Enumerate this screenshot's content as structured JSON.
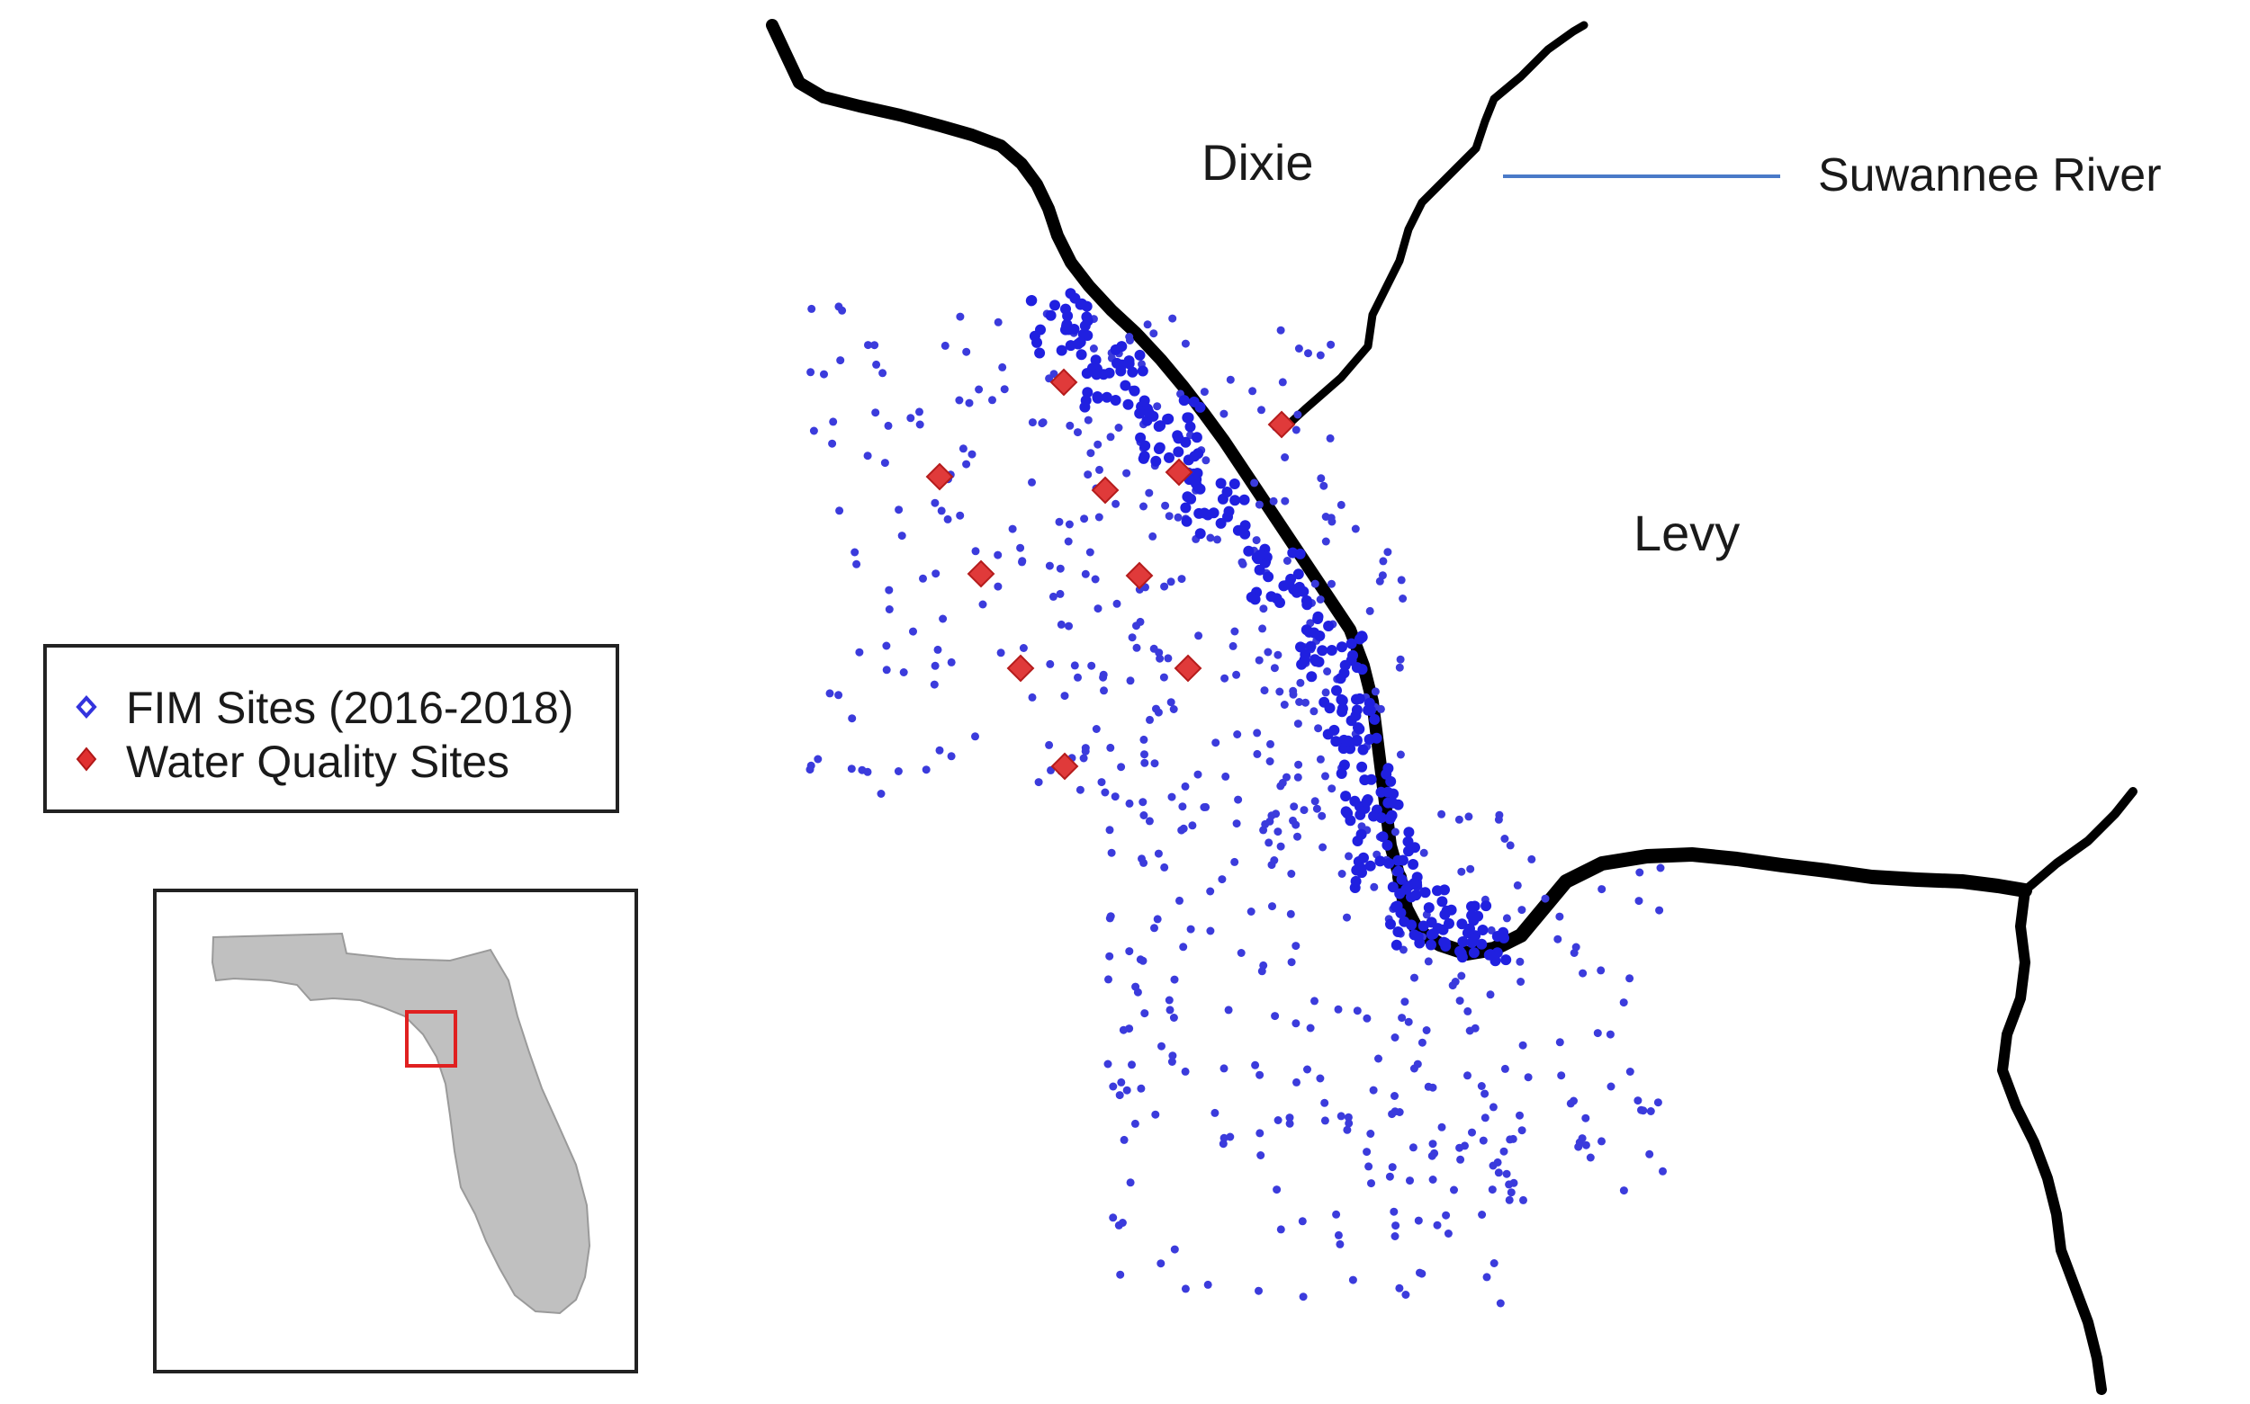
{
  "map": {
    "labels": {
      "dixie": "Dixie",
      "levy": "Levy",
      "suwannee_river": "Suwannee River"
    },
    "legend": {
      "items": [
        {
          "label": "FIM Sites (2016-2018)",
          "symbol": "open-diamond-icon",
          "color": "#3333dd"
        },
        {
          "label": "Water Quality Sites",
          "symbol": "filled-diamond-icon",
          "color": "#e03030"
        }
      ]
    },
    "inset": {
      "region": "Florida",
      "highlight_color": "#e02020"
    },
    "colors": {
      "coastline": "#000000",
      "fim_sites": "#3b3bdc",
      "water_quality_sites": "#e03a3a",
      "river_leader": "#4a7ac8",
      "inset_land": "#c0c0c0"
    }
  }
}
